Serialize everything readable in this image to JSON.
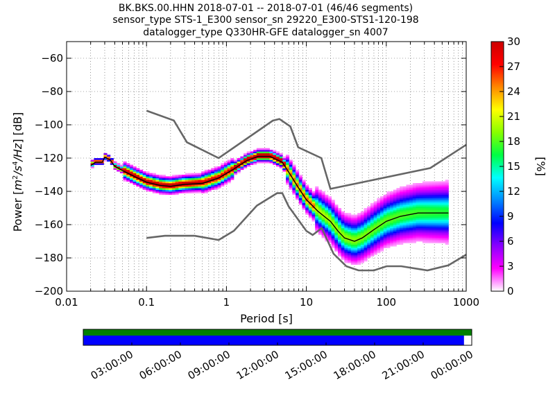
{
  "chart_data": {
    "type": "heatmap",
    "title": {
      "line1": "BK.BKS.00.HHN   2018-07-01 -- 2018-07-01  (46/46 segments)",
      "line2": "sensor_type STS-1_E300 sensor_sn 29220_E300-STS1-120-198",
      "line3": "datalogger_type Q330HR-GFE datalogger_sn 4007"
    },
    "xlabel": "Period [s]",
    "ylabel": "Power [m²/s⁴/Hz] [dB]",
    "ylabel_parts": {
      "prefix": "Power [",
      "m": "m",
      "e2": "2",
      "s": "/s",
      "e4": "4",
      "hz": "/Hz",
      "suffix": "] [dB]"
    },
    "x_scale": "log",
    "xlim": [
      0.01,
      1000
    ],
    "ylim": [
      -200,
      -50
    ],
    "x_ticks": [
      0.01,
      0.1,
      1,
      10,
      100,
      1000
    ],
    "x_tick_labels": [
      "0.01",
      "0.1",
      "1",
      "10",
      "100",
      "1000"
    ],
    "y_ticks": [
      -200,
      -180,
      -160,
      -140,
      -120,
      -100,
      -80,
      -60
    ],
    "y_tick_labels": [
      "−200",
      "−180",
      "−160",
      "−140",
      "−120",
      "−100",
      "−80",
      "−60"
    ],
    "grid": "dotted",
    "colorbar": {
      "label": "[%]",
      "range": [
        0,
        30
      ],
      "ticks": [
        0,
        3,
        6,
        9,
        12,
        15,
        18,
        21,
        24,
        27,
        30
      ],
      "colors": [
        "#ffffff",
        "#ff00ff",
        "#8a00ff",
        "#0000ff",
        "#0088ff",
        "#00ffff",
        "#00ff44",
        "#88ff00",
        "#ffff00",
        "#ff8800",
        "#ff0000",
        "#cc0000"
      ]
    },
    "nhnm": [
      [
        0.1,
        -91.5
      ],
      [
        0.22,
        -97.4
      ],
      [
        0.32,
        -110.5
      ],
      [
        0.8,
        -120
      ],
      [
        3.8,
        -97.5
      ],
      [
        4.6,
        -96.5
      ],
      [
        6.3,
        -101
      ],
      [
        7.9,
        -113.5
      ],
      [
        15.4,
        -120
      ],
      [
        20,
        -138.5
      ],
      [
        354.8,
        -126
      ],
      [
        1000,
        -112
      ]
    ],
    "nlnm": [
      [
        0.1,
        -168
      ],
      [
        0.17,
        -166.7
      ],
      [
        0.4,
        -166.7
      ],
      [
        0.8,
        -169.2
      ],
      [
        1.24,
        -163.7
      ],
      [
        2.4,
        -148.6
      ],
      [
        4.3,
        -141.1
      ],
      [
        5,
        -141.1
      ],
      [
        6,
        -149
      ],
      [
        10,
        -163.8
      ],
      [
        12,
        -166.2
      ],
      [
        15.6,
        -162.1
      ],
      [
        21.9,
        -177.5
      ],
      [
        31.6,
        -185
      ],
      [
        45,
        -187.5
      ],
      [
        70,
        -187.5
      ],
      [
        101,
        -185
      ],
      [
        154,
        -185
      ],
      [
        328,
        -187.5
      ],
      [
        600,
        -184.4
      ],
      [
        1000,
        -178
      ]
    ],
    "mode_curve": [
      [
        0.02,
        -124.5
      ],
      [
        0.023,
        -122.5
      ],
      [
        0.028,
        -122.5
      ],
      [
        0.03,
        -119.5
      ],
      [
        0.035,
        -121
      ],
      [
        0.04,
        -125
      ],
      [
        0.05,
        -127.5
      ],
      [
        0.07,
        -131
      ],
      [
        0.1,
        -134.5
      ],
      [
        0.15,
        -136.5
      ],
      [
        0.2,
        -137
      ],
      [
        0.3,
        -135.8
      ],
      [
        0.5,
        -135.2
      ],
      [
        0.8,
        -132
      ],
      [
        1.2,
        -127
      ],
      [
        1.8,
        -121.5
      ],
      [
        2.5,
        -119
      ],
      [
        3.5,
        -119
      ],
      [
        5,
        -122.5
      ],
      [
        6.5,
        -131
      ],
      [
        8,
        -138
      ],
      [
        10,
        -145
      ],
      [
        14,
        -152
      ],
      [
        20,
        -158
      ],
      [
        25,
        -164
      ],
      [
        30,
        -168
      ],
      [
        40,
        -170
      ],
      [
        50,
        -168
      ],
      [
        70,
        -163
      ],
      [
        100,
        -158
      ],
      [
        150,
        -155
      ],
      [
        250,
        -153
      ],
      [
        400,
        -153
      ],
      [
        600,
        -153
      ]
    ],
    "availability": {
      "tick_labels": [
        "03:00:00",
        "06:00:00",
        "09:00:00",
        "12:00:00",
        "15:00:00",
        "18:00:00",
        "21:00:00",
        "00:00:00"
      ],
      "data_fraction": 0.98,
      "data_color": "#0000ff",
      "gap_color": "#008000"
    }
  }
}
